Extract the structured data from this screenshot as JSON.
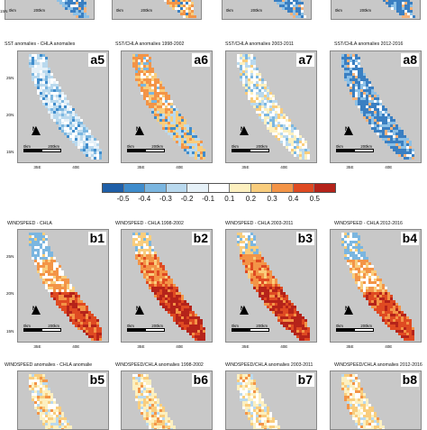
{
  "colorbar": {
    "ticks": [
      "-0.5",
      "-0.4",
      "-0.3",
      "-0.2",
      "-0.1",
      "0.1",
      "0.2",
      "0.3",
      "0.4",
      "0.5"
    ],
    "colors": [
      "#1f5fa8",
      "#3f8ccc",
      "#7bb6e0",
      "#b9d9ee",
      "#e6f1f8",
      "#ffffff",
      "#fdf0c0",
      "#f9cd7d",
      "#f39447",
      "#df4a22",
      "#b5231a"
    ]
  },
  "axis": {
    "lat": [
      "25N",
      "20N",
      "15N"
    ],
    "lat_top": [
      "15N"
    ],
    "lon": [
      "35E",
      "40E"
    ]
  },
  "scalebar": {
    "start": "0km",
    "end": "200km"
  },
  "north_label": "N",
  "rows": {
    "a_top": {
      "panels": [
        {
          "label": "",
          "scheme": "blue-dominant"
        },
        {
          "label": "",
          "scheme": "mixed-orange"
        },
        {
          "label": "",
          "scheme": "blue-dominant"
        },
        {
          "label": "",
          "scheme": "blue-dominant"
        }
      ]
    },
    "a": {
      "panels": [
        {
          "title": "SST anomalies - CHLA anomalies",
          "label": "a5",
          "scheme": "pale-blue"
        },
        {
          "title": "SST/CHLA anomalies 1998-2002",
          "label": "a6",
          "scheme": "orange-mix"
        },
        {
          "title": "SST/CHLA anomalies 2003-2011",
          "label": "a7",
          "scheme": "pale-mixed"
        },
        {
          "title": "SST/CHLA anomalies 2012-2016",
          "label": "a8",
          "scheme": "blue-dominant"
        }
      ]
    },
    "b": {
      "panels": [
        {
          "title": "WINDSPEED - CHLA",
          "label": "b1",
          "scheme": "red-south"
        },
        {
          "title": "WINDSPEED - CHLA 1998-2002",
          "label": "b2",
          "scheme": "red-strong"
        },
        {
          "title": "WINDSPEED - CHLA 2003-2011",
          "label": "b3",
          "scheme": "red-strong"
        },
        {
          "title": "WINDSPEED - CHLA  2012-2016",
          "label": "b4",
          "scheme": "red-south"
        }
      ]
    },
    "b_bottom": {
      "panels": [
        {
          "title": "WINDSPEED anomalies - CHLA anomalie",
          "label": "b5",
          "scheme": "pale-orange"
        },
        {
          "title": "WINDSPEED/CHLA anomalies 1998-2002",
          "label": "b6",
          "scheme": "pale-orange"
        },
        {
          "title": "WINDSPEED/CHLA anomalies 2003-2011",
          "label": "b7",
          "scheme": "pale-orange"
        },
        {
          "title": "WINDSPEED/CHLA anomalies 2012-2016",
          "label": "b8",
          "scheme": "pale-orange"
        }
      ]
    }
  }
}
